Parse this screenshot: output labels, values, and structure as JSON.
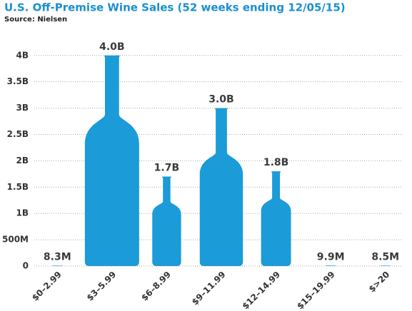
{
  "chart_data": {
    "type": "bar",
    "title": "U.S. Off-Premise Wine Sales (52 weeks ending 12/05/15)",
    "subtitle": "Source: Nielsen",
    "categories": [
      "$0–2.99",
      "$3–5.99",
      "$6–8.99",
      "$9–11.99",
      "$12–14.99",
      "$15–19.99",
      "$>20"
    ],
    "values": [
      8300000,
      4000000000,
      1700000000,
      3000000000,
      1800000000,
      9900000,
      8500000
    ],
    "value_labels": [
      "8.3M",
      "4.0B",
      "1.7B",
      "3.0B",
      "1.8B",
      "9.9M",
      "8.5M"
    ],
    "color": "#1b9bd7",
    "ylim": [
      0,
      4200000000
    ],
    "yticks": [
      0,
      {
        "value": 500000000,
        "label": "500M"
      },
      {
        "value": 1000000000,
        "label": "1B"
      },
      {
        "value": 1500000000,
        "label": "1.5B"
      },
      {
        "value": 2000000000,
        "label": "2B"
      },
      {
        "value": 2500000000,
        "label": "2.5B"
      },
      {
        "value": 3000000000,
        "label": "3B"
      },
      {
        "value": 3500000000,
        "label": "3.5B"
      },
      {
        "value": 4000000000,
        "label": "4B"
      }
    ],
    "grid": true
  }
}
